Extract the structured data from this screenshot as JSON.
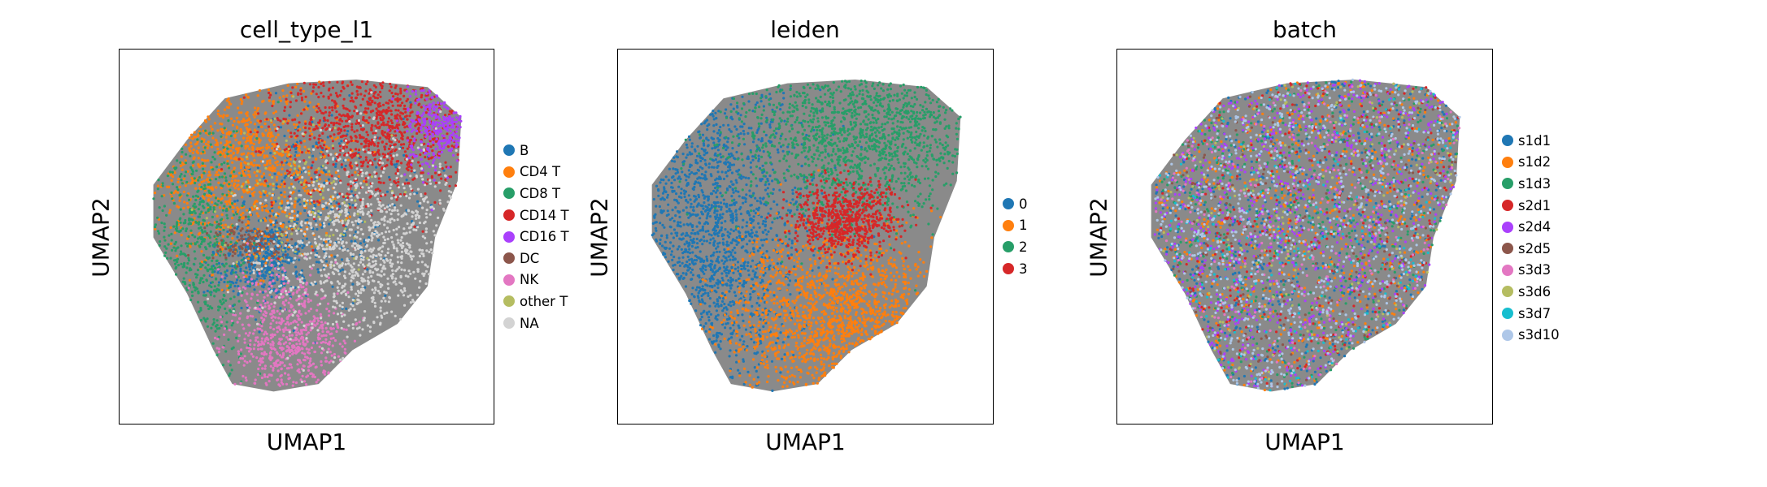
{
  "chart_data": [
    {
      "type": "scatter",
      "title": "cell_type_l1",
      "xlabel": "UMAP1",
      "ylabel": "UMAP2",
      "grid": false,
      "legend": "right",
      "series": [
        {
          "name": "B",
          "color": "#1f77b4"
        },
        {
          "name": "CD4 T",
          "color": "#ff7f0e"
        },
        {
          "name": "CD8 T",
          "color": "#279e68"
        },
        {
          "name": "CD14 T",
          "color": "#d62728"
        },
        {
          "name": "CD16 T",
          "color": "#aa40fc"
        },
        {
          "name": "DC",
          "color": "#8c564b"
        },
        {
          "name": "NK",
          "color": "#e377c2"
        },
        {
          "name": "other T",
          "color": "#b5bd61"
        },
        {
          "name": "NA",
          "color": "#d3d3d3"
        }
      ]
    },
    {
      "type": "scatter",
      "title": "leiden",
      "xlabel": "UMAP1",
      "ylabel": "UMAP2",
      "grid": false,
      "legend": "right",
      "series": [
        {
          "name": "0",
          "color": "#1f77b4"
        },
        {
          "name": "1",
          "color": "#ff7f0e"
        },
        {
          "name": "2",
          "color": "#279e68"
        },
        {
          "name": "3",
          "color": "#d62728"
        }
      ]
    },
    {
      "type": "scatter",
      "title": "batch",
      "xlabel": "UMAP1",
      "ylabel": "UMAP2",
      "grid": false,
      "legend": "right",
      "series": [
        {
          "name": "s1d1",
          "color": "#1f77b4"
        },
        {
          "name": "s1d2",
          "color": "#ff7f0e"
        },
        {
          "name": "s1d3",
          "color": "#279e68"
        },
        {
          "name": "s2d1",
          "color": "#d62728"
        },
        {
          "name": "s2d4",
          "color": "#aa40fc"
        },
        {
          "name": "s2d5",
          "color": "#8c564b"
        },
        {
          "name": "s3d3",
          "color": "#e377c2"
        },
        {
          "name": "s3d6",
          "color": "#b5bd61"
        },
        {
          "name": "s3d7",
          "color": "#17becf"
        },
        {
          "name": "s3d10",
          "color": "#aec7e8"
        }
      ]
    }
  ]
}
